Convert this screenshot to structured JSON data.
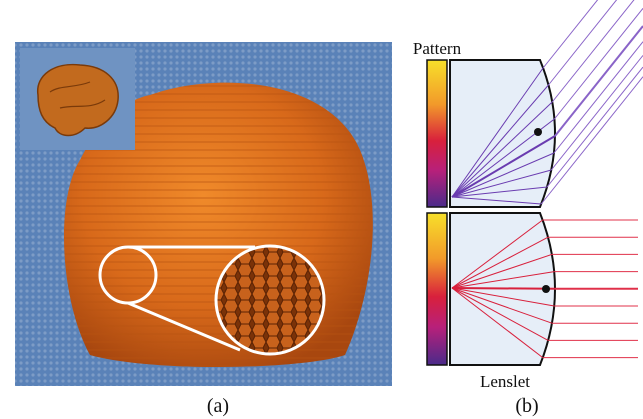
{
  "labels": {
    "pattern": "Pattern",
    "lenslet": "Lenslet",
    "panel_a": "(a)",
    "panel_b": "(b)"
  }
}
